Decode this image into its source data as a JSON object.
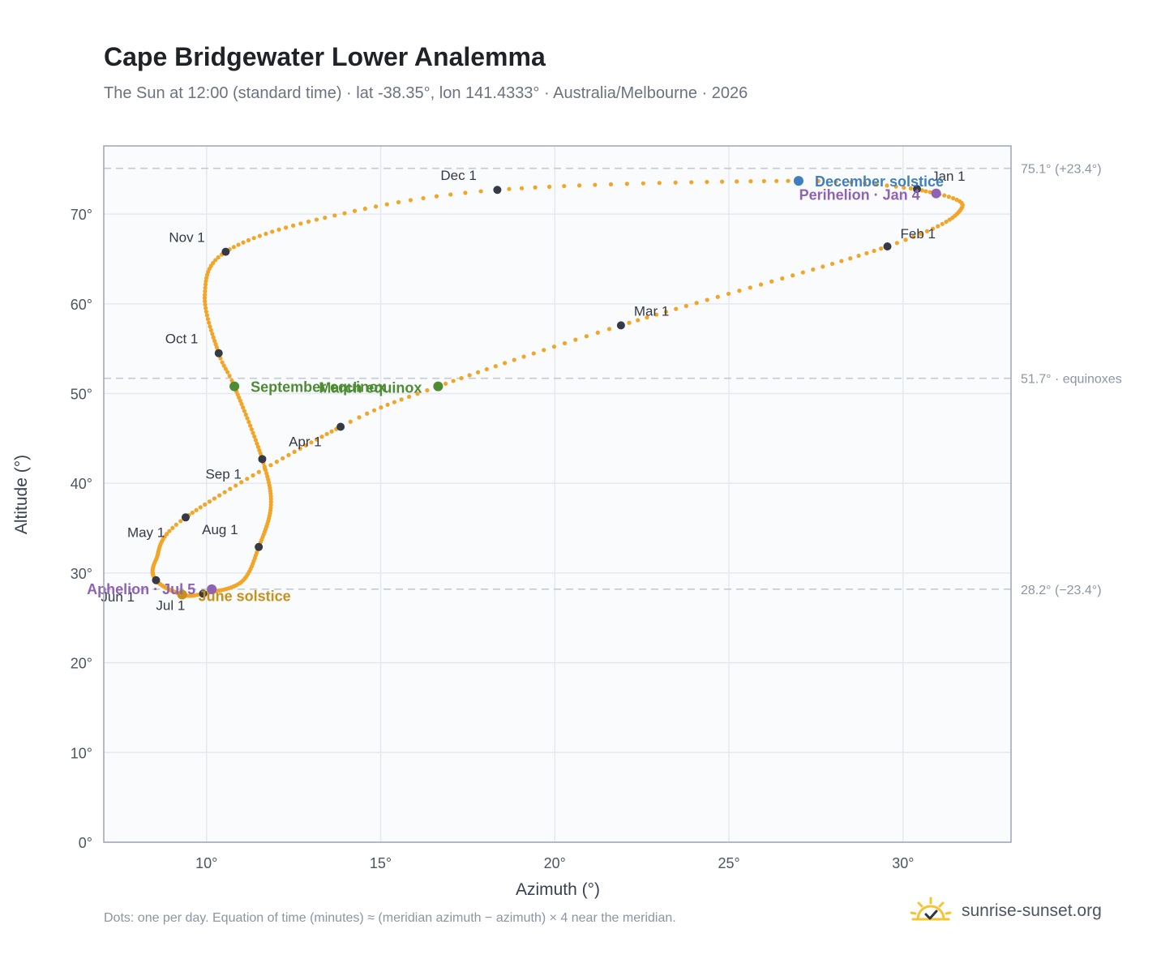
{
  "header": {
    "title": "Cape Bridgewater Lower Analemma",
    "subtitle": "The Sun at 12:00 (standard time) · lat -38.35°, lon 141.4333° · Australia/Melbourne · 2026"
  },
  "footer": {
    "note": "Dots: one per day. Equation of time (minutes) ≈ (meridian azimuth − azimuth) × 4 near the meridian.",
    "brand": "sunrise-sunset.org"
  },
  "colors": {
    "curve": "#f2a526",
    "month_dot": "#343a46",
    "equinox": "#4e8c34",
    "december_solstice": "#3f7fc1",
    "june_solstice": "#c9901a",
    "apsis": "#8f62b3",
    "grid": "#e5e9ef",
    "reference_line": "#c2cbd6"
  },
  "chart_data": {
    "type": "scatter",
    "xlabel": "Azimuth (°)",
    "ylabel": "Altitude (°)",
    "xlim": [
      7.05,
      33.1
    ],
    "ylim": [
      0,
      77.6
    ],
    "x_ticks": [
      10,
      15,
      20,
      25,
      30
    ],
    "x_tick_labels": [
      "10°",
      "15°",
      "20°",
      "25°",
      "30°"
    ],
    "y_ticks": [
      0,
      10,
      20,
      30,
      40,
      50,
      60,
      70
    ],
    "y_tick_labels": [
      "0°",
      "10°",
      "20°",
      "30°",
      "40°",
      "50°",
      "60°",
      "70°"
    ],
    "grid": true,
    "reference_lines": [
      {
        "altitude": 75.1,
        "label": "75.1° (+23.4°)"
      },
      {
        "altitude": 51.7,
        "label": "51.7° · equinoxes"
      },
      {
        "altitude": 28.2,
        "label": "28.2° (−23.4°)"
      }
    ],
    "month_markers": [
      {
        "label": "Jan 1",
        "azimuth": 30.4,
        "altitude": 72.8
      },
      {
        "label": "Feb 1",
        "azimuth": 29.55,
        "altitude": 66.4
      },
      {
        "label": "Mar 1",
        "azimuth": 21.9,
        "altitude": 57.6
      },
      {
        "label": "Apr 1",
        "azimuth": 13.85,
        "altitude": 46.3
      },
      {
        "label": "May 1",
        "azimuth": 9.4,
        "altitude": 36.2
      },
      {
        "label": "Jun 1",
        "azimuth": 8.55,
        "altitude": 29.2
      },
      {
        "label": "Jul 1",
        "azimuth": 9.9,
        "altitude": 27.7
      },
      {
        "label": "Aug 1",
        "azimuth": 11.5,
        "altitude": 32.9
      },
      {
        "label": "Sep 1",
        "azimuth": 11.6,
        "altitude": 42.7
      },
      {
        "label": "Oct 1",
        "azimuth": 10.35,
        "altitude": 54.5
      },
      {
        "label": "Nov 1",
        "azimuth": 10.55,
        "altitude": 65.8
      },
      {
        "label": "Dec 1",
        "azimuth": 18.35,
        "altitude": 72.7
      }
    ],
    "events": [
      {
        "label": "December solstice",
        "azimuth": 27.0,
        "altitude": 73.7,
        "kind": "december_solstice"
      },
      {
        "label": "Perihelion · Jan 4",
        "azimuth": 30.95,
        "altitude": 72.3,
        "kind": "apsis"
      },
      {
        "label": "March equinox",
        "azimuth": 16.65,
        "altitude": 50.8,
        "kind": "equinox"
      },
      {
        "label": "September equinox",
        "azimuth": 10.8,
        "altitude": 50.8,
        "kind": "equinox"
      },
      {
        "label": "June solstice",
        "azimuth": 9.3,
        "altitude": 27.6,
        "kind": "june_solstice"
      },
      {
        "label": "Aphelion · Jul 5",
        "azimuth": 10.15,
        "altitude": 28.2,
        "kind": "apsis"
      }
    ],
    "curve_control_points": [
      {
        "day": 0,
        "azimuth": 30.4,
        "altitude": 72.8
      },
      {
        "day": 14,
        "azimuth": 31.7,
        "altitude": 70.8
      },
      {
        "day": 31,
        "azimuth": 29.55,
        "altitude": 66.4
      },
      {
        "day": 59,
        "azimuth": 21.9,
        "altitude": 57.6
      },
      {
        "day": 78,
        "azimuth": 16.65,
        "altitude": 50.8
      },
      {
        "day": 90,
        "azimuth": 13.85,
        "altitude": 46.3
      },
      {
        "day": 120,
        "azimuth": 9.4,
        "altitude": 36.2
      },
      {
        "day": 137,
        "azimuth": 8.55,
        "altitude": 31.5
      },
      {
        "day": 151,
        "azimuth": 8.55,
        "altitude": 29.2
      },
      {
        "day": 172,
        "azimuth": 9.3,
        "altitude": 27.6
      },
      {
        "day": 181,
        "azimuth": 9.9,
        "altitude": 27.7
      },
      {
        "day": 198,
        "azimuth": 11.0,
        "altitude": 29.0
      },
      {
        "day": 212,
        "azimuth": 11.5,
        "altitude": 32.9
      },
      {
        "day": 228,
        "azimuth": 11.85,
        "altitude": 37.6
      },
      {
        "day": 243,
        "azimuth": 11.6,
        "altitude": 42.7
      },
      {
        "day": 265,
        "azimuth": 10.8,
        "altitude": 50.8
      },
      {
        "day": 273,
        "azimuth": 10.35,
        "altitude": 54.5
      },
      {
        "day": 290,
        "azimuth": 9.95,
        "altitude": 61.0
      },
      {
        "day": 304,
        "azimuth": 10.55,
        "altitude": 65.8
      },
      {
        "day": 320,
        "azimuth": 13.4,
        "altitude": 69.6
      },
      {
        "day": 334,
        "azimuth": 18.35,
        "altitude": 72.7
      },
      {
        "day": 355,
        "azimuth": 27.0,
        "altitude": 73.7
      },
      {
        "day": 365,
        "azimuth": 30.4,
        "altitude": 72.8
      }
    ]
  }
}
